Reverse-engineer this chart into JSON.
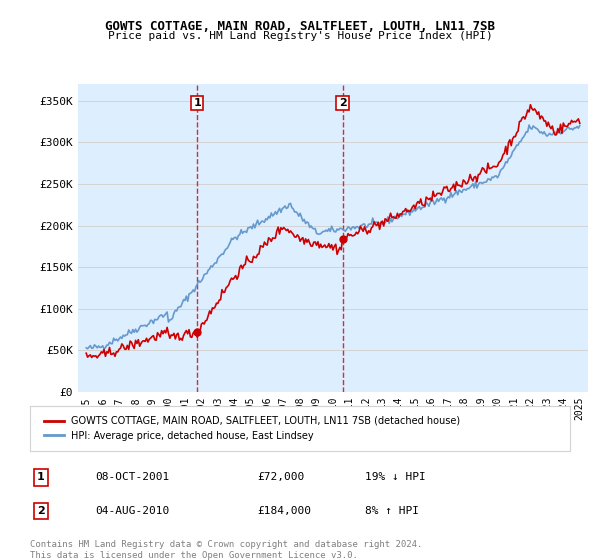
{
  "title": "GOWTS COTTAGE, MAIN ROAD, SALTFLEET, LOUTH, LN11 7SB",
  "subtitle": "Price paid vs. HM Land Registry's House Price Index (HPI)",
  "legend_line1": "GOWTS COTTAGE, MAIN ROAD, SALTFLEET, LOUTH, LN11 7SB (detached house)",
  "legend_line2": "HPI: Average price, detached house, East Lindsey",
  "transaction1_label": "1",
  "transaction1_date": "08-OCT-2001",
  "transaction1_price": "£72,000",
  "transaction1_hpi": "19% ↓ HPI",
  "transaction2_label": "2",
  "transaction2_date": "04-AUG-2010",
  "transaction2_price": "£184,000",
  "transaction2_hpi": "8% ↑ HPI",
  "footer": "Contains HM Land Registry data © Crown copyright and database right 2024.\nThis data is licensed under the Open Government Licence v3.0.",
  "red_color": "#cc0000",
  "blue_color": "#6699cc",
  "background_color": "#ddeeff",
  "plot_bg": "#ffffff",
  "vline1_x": 2001.75,
  "vline2_x": 2010.58,
  "ylim": [
    0,
    370000
  ],
  "xlim_start": 1994.5,
  "xlim_end": 2025.5,
  "yticks": [
    0,
    50000,
    100000,
    150000,
    200000,
    250000,
    300000,
    350000
  ],
  "ytick_labels": [
    "£0",
    "£50K",
    "£100K",
    "£150K",
    "£200K",
    "£250K",
    "£300K",
    "£350K"
  ],
  "xticks": [
    1995,
    1996,
    1997,
    1998,
    1999,
    2000,
    2001,
    2002,
    2003,
    2004,
    2005,
    2006,
    2007,
    2008,
    2009,
    2010,
    2011,
    2012,
    2013,
    2014,
    2015,
    2016,
    2017,
    2018,
    2019,
    2020,
    2021,
    2022,
    2023,
    2024,
    2025
  ]
}
